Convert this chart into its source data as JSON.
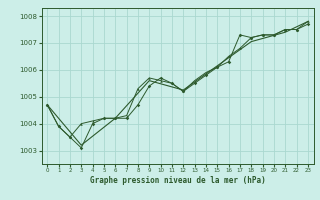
{
  "xlabel": "Graphe pression niveau de la mer (hPa)",
  "background_color": "#cceee8",
  "grid_color": "#aad8d0",
  "line_color": "#2d5a2d",
  "xlim": [
    -0.5,
    23.5
  ],
  "ylim": [
    1002.5,
    1008.3
  ],
  "yticks": [
    1003,
    1004,
    1005,
    1006,
    1007,
    1008
  ],
  "xticks": [
    0,
    1,
    2,
    3,
    4,
    5,
    6,
    7,
    8,
    9,
    10,
    11,
    12,
    13,
    14,
    15,
    16,
    17,
    18,
    19,
    20,
    21,
    22,
    23
  ],
  "series1": {
    "x": [
      0,
      1,
      2,
      3,
      4,
      5,
      6,
      7,
      8,
      9,
      10,
      11,
      12,
      13,
      14,
      15,
      16,
      17,
      18,
      19,
      20,
      21,
      22,
      23
    ],
    "y": [
      1004.7,
      1003.9,
      1003.5,
      1003.1,
      1004.0,
      1004.2,
      1004.2,
      1004.2,
      1004.7,
      1005.4,
      1005.7,
      1005.5,
      1005.2,
      1005.5,
      1005.8,
      1006.1,
      1006.3,
      1007.3,
      1007.2,
      1007.3,
      1007.3,
      1007.5,
      1007.5,
      1007.7
    ]
  },
  "series2": {
    "x": [
      0,
      1,
      2,
      3,
      4,
      5,
      6,
      7,
      8,
      9,
      10,
      11,
      12,
      13,
      14,
      15,
      16,
      17,
      18,
      19,
      20,
      21,
      22,
      23
    ],
    "y": [
      1004.7,
      1003.9,
      1003.5,
      1004.0,
      1004.1,
      1004.2,
      1004.2,
      1004.3,
      1005.3,
      1005.7,
      1005.6,
      1005.5,
      1005.2,
      1005.6,
      1005.9,
      1006.1,
      1006.5,
      1006.8,
      1007.2,
      1007.3,
      1007.3,
      1007.5,
      1007.5,
      1007.8
    ]
  },
  "series3": {
    "x": [
      0,
      3,
      6,
      9,
      12,
      15,
      18,
      21,
      23
    ],
    "y": [
      1004.7,
      1003.2,
      1004.2,
      1005.6,
      1005.25,
      1006.15,
      1007.05,
      1007.4,
      1007.8
    ]
  }
}
